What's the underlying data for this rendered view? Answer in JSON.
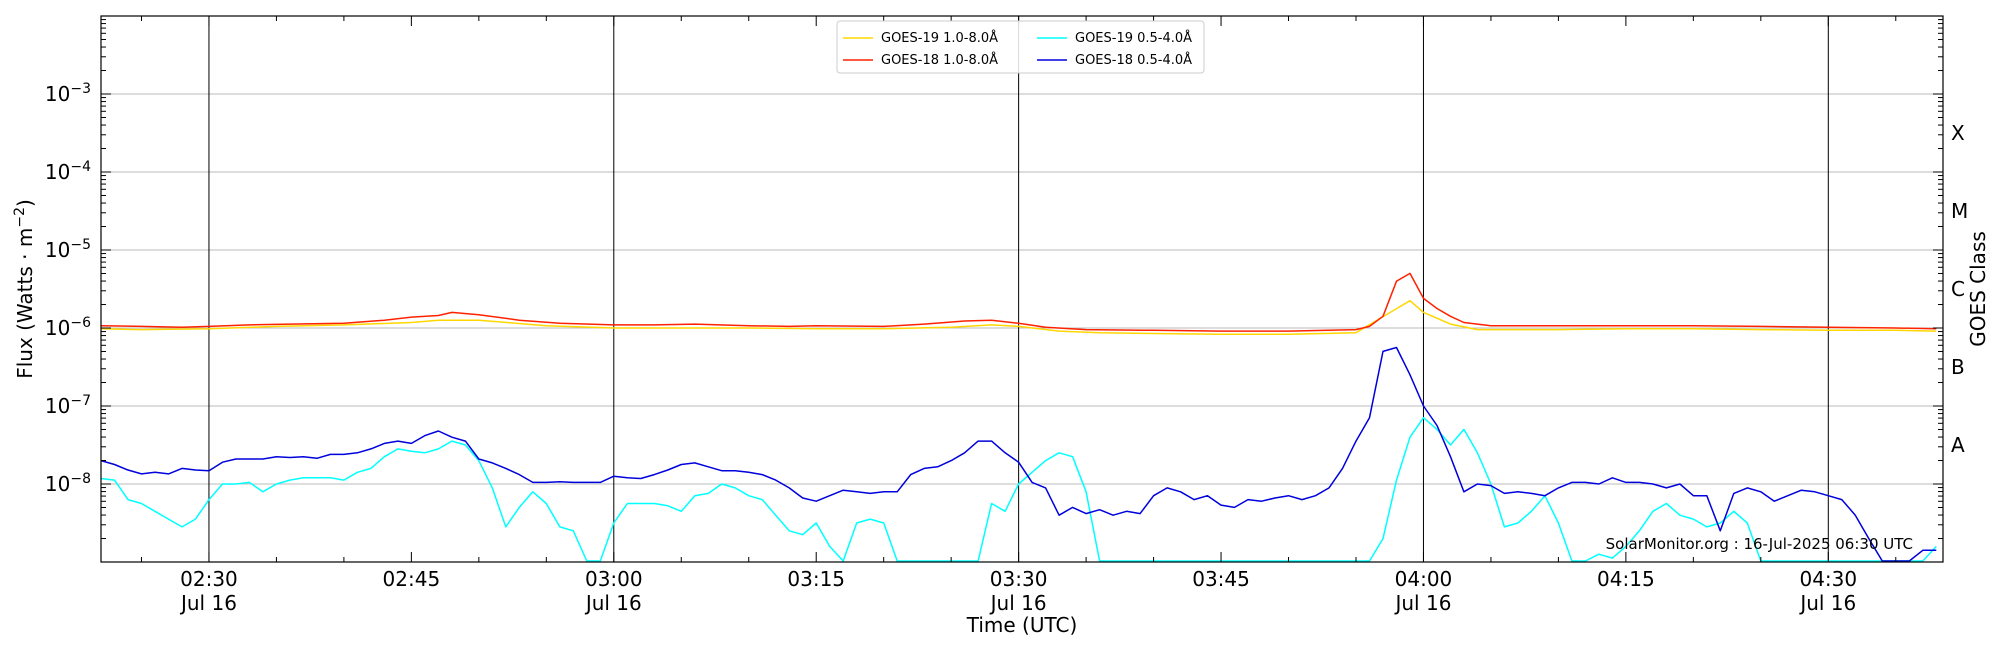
{
  "chart_data": {
    "type": "line",
    "xlabel": "Time (UTC)",
    "ylabel_text": "Flux (Watts · m",
    "ylabel_exp": "−2",
    "ylabel_close": ")",
    "right_label": "GOES Class",
    "credit": "SolarMonitor.org : 16-Jul-2025 06:30 UTC",
    "y_scale": "log",
    "ylim": [
      1e-09,
      0.01
    ],
    "xlim_minutes": [
      22.0,
      158.5
    ],
    "x_time_origin": "02:00",
    "x_ticks": [
      {
        "minute": 30,
        "label": "02:30",
        "date": "Jul 16"
      },
      {
        "minute": 45,
        "label": "02:45",
        "date": ""
      },
      {
        "minute": 60,
        "label": "03:00",
        "date": "Jul 16"
      },
      {
        "minute": 75,
        "label": "03:15",
        "date": ""
      },
      {
        "minute": 90,
        "label": "03:30",
        "date": "Jul 16"
      },
      {
        "minute": 105,
        "label": "03:45",
        "date": ""
      },
      {
        "minute": 120,
        "label": "04:00",
        "date": "Jul 16"
      },
      {
        "minute": 135,
        "label": "04:15",
        "date": ""
      },
      {
        "minute": 150,
        "label": "04:30",
        "date": "Jul 16"
      }
    ],
    "vertical_lines_minutes": [
      30,
      60,
      90,
      120,
      150
    ],
    "y_ticks": [
      {
        "exp": -8,
        "label_base": "10",
        "label_exp": "−8"
      },
      {
        "exp": -7,
        "label_base": "10",
        "label_exp": "−7"
      },
      {
        "exp": -6,
        "label_base": "10",
        "label_exp": "−6"
      },
      {
        "exp": -5,
        "label_base": "10",
        "label_exp": "−5"
      },
      {
        "exp": -4,
        "label_base": "10",
        "label_exp": "−4"
      },
      {
        "exp": -3,
        "label_base": "10",
        "label_exp": "−3"
      }
    ],
    "classes": [
      {
        "label": "A",
        "exp": -7.5
      },
      {
        "label": "B",
        "exp": -6.5
      },
      {
        "label": "C",
        "exp": -5.5
      },
      {
        "label": "M",
        "exp": -4.5
      },
      {
        "label": "X",
        "exp": -3.5
      }
    ],
    "grid": "horizontal",
    "legend_position": "top-center",
    "series": [
      {
        "name": "GOES-19 1.0-8.0Å",
        "color": "#ffd700",
        "x": [
          22,
          25,
          30,
          35,
          40,
          45,
          47,
          50,
          55,
          60,
          65,
          70,
          75,
          80,
          85,
          88,
          90,
          93,
          96,
          100,
          105,
          110,
          115,
          119,
          120,
          122,
          124,
          126,
          130,
          135,
          140,
          145,
          150,
          155,
          158
        ],
        "log10": [
          -6.01,
          -6.02,
          -6.01,
          -5.98,
          -5.96,
          -5.93,
          -5.9,
          -5.9,
          -5.97,
          -6.0,
          -6.0,
          -6.0,
          -6.01,
          -6.01,
          -5.99,
          -5.96,
          -5.98,
          -6.04,
          -6.06,
          -6.07,
          -6.08,
          -6.08,
          -6.06,
          -5.65,
          -5.8,
          -5.95,
          -6.02,
          -6.02,
          -6.02,
          -6.01,
          -6.01,
          -6.02,
          -6.03,
          -6.03,
          -6.04
        ]
      },
      {
        "name": "GOES-18 1.0-8.0Å",
        "color": "#ff2200",
        "x": [
          22,
          25,
          28,
          30,
          33,
          36,
          40,
          43,
          45,
          47,
          48,
          50,
          53,
          56,
          60,
          63,
          66,
          70,
          73,
          75,
          80,
          83,
          86,
          88,
          90,
          92,
          95,
          100,
          105,
          110,
          115,
          116,
          117,
          118,
          119,
          120,
          121,
          122,
          123,
          125,
          130,
          135,
          140,
          145,
          150,
          155,
          158
        ],
        "log10": [
          -5.97,
          -5.98,
          -5.99,
          -5.98,
          -5.96,
          -5.95,
          -5.94,
          -5.9,
          -5.86,
          -5.84,
          -5.8,
          -5.83,
          -5.9,
          -5.94,
          -5.96,
          -5.96,
          -5.95,
          -5.97,
          -5.98,
          -5.97,
          -5.98,
          -5.95,
          -5.91,
          -5.9,
          -5.94,
          -5.99,
          -6.02,
          -6.03,
          -6.04,
          -6.04,
          -6.02,
          -5.98,
          -5.85,
          -5.4,
          -5.3,
          -5.62,
          -5.75,
          -5.85,
          -5.93,
          -5.97,
          -5.97,
          -5.97,
          -5.97,
          -5.98,
          -5.99,
          -6.0,
          -6.01
        ]
      },
      {
        "name": "GOES-19 0.5-4.0Å",
        "color": "#00ffff",
        "x": [
          22,
          23,
          24,
          25,
          26,
          27,
          28,
          29,
          30,
          31,
          32,
          33,
          34,
          35,
          36,
          37,
          38,
          39,
          40,
          41,
          42,
          43,
          44,
          45,
          46,
          47,
          48,
          49,
          50,
          51,
          52,
          53,
          54,
          55,
          56,
          57,
          58,
          59,
          60,
          61,
          62,
          63,
          64,
          65,
          66,
          67,
          68,
          69,
          70,
          71,
          72,
          73,
          74,
          75,
          76,
          77,
          78,
          79,
          80,
          81,
          82,
          83,
          84,
          85,
          86,
          87,
          88,
          89,
          90,
          91,
          92,
          93,
          94,
          95,
          96,
          97,
          98,
          99,
          100,
          101,
          102,
          103,
          104,
          105,
          106,
          107,
          108,
          109,
          110,
          111,
          112,
          113,
          114,
          115,
          116,
          117,
          118,
          119,
          120,
          121,
          122,
          123,
          124,
          125,
          126,
          127,
          128,
          129,
          130,
          131,
          132,
          133,
          134,
          135,
          136,
          137,
          138,
          139,
          140,
          141,
          142,
          143,
          144,
          145,
          146,
          147,
          148,
          149,
          150,
          151,
          152,
          153,
          154,
          155,
          156,
          157,
          158
        ],
        "log10": [
          -7.93,
          -7.95,
          -8.2,
          -8.25,
          -8.35,
          -8.45,
          -8.55,
          -8.45,
          -8.2,
          -8.0,
          -8.0,
          -7.98,
          -8.1,
          -8.0,
          -7.95,
          -7.92,
          -7.92,
          -7.92,
          -7.95,
          -7.85,
          -7.8,
          -7.65,
          -7.55,
          -7.58,
          -7.6,
          -7.55,
          -7.45,
          -7.5,
          -7.7,
          -8.05,
          -8.55,
          -8.3,
          -8.1,
          -8.25,
          -8.55,
          -8.6,
          -9.0,
          -9.0,
          -8.5,
          -8.25,
          -8.25,
          -8.25,
          -8.28,
          -8.35,
          -8.15,
          -8.12,
          -8.0,
          -8.05,
          -8.15,
          -8.2,
          -8.4,
          -8.6,
          -8.65,
          -8.5,
          -8.8,
          -9.0,
          -8.5,
          -8.45,
          -8.5,
          -9.0,
          -9.0,
          -9.0,
          -9.0,
          -9.0,
          -9.0,
          -9.0,
          -8.25,
          -8.35,
          -8.0,
          -7.85,
          -7.7,
          -7.6,
          -7.65,
          -8.1,
          -9.0,
          -9.0,
          -9.0,
          -9.0,
          -9.0,
          -9.0,
          -9.0,
          -9.0,
          -9.0,
          -9.0,
          -9.0,
          -9.0,
          -9.0,
          -9.0,
          -9.0,
          -9.0,
          -9.0,
          -9.0,
          -9.0,
          -9.0,
          -9.0,
          -8.7,
          -7.95,
          -7.4,
          -7.15,
          -7.3,
          -7.5,
          -7.3,
          -7.6,
          -8.0,
          -8.55,
          -8.5,
          -8.35,
          -8.15,
          -8.5,
          -9.0,
          -9.0,
          -8.9,
          -8.95,
          -8.8,
          -8.6,
          -8.35,
          -8.25,
          -8.4,
          -8.45,
          -8.55,
          -8.5,
          -8.35,
          -8.5,
          -9.0,
          -9.0,
          -9.0,
          -9.0,
          -9.0,
          -9.0,
          -9.0,
          -9.0,
          -9.0,
          -9.0,
          -9.0,
          -9.0,
          -9.0,
          -8.8,
          -8.6,
          -8.5,
          -8.45,
          -8.4,
          -8.35,
          -8.4
        ]
      },
      {
        "name": "GOES-18 0.5-4.0Å",
        "color": "#0000dd",
        "x": [
          22,
          23,
          24,
          25,
          26,
          27,
          28,
          29,
          30,
          31,
          32,
          33,
          34,
          35,
          36,
          37,
          38,
          39,
          40,
          41,
          42,
          43,
          44,
          45,
          46,
          47,
          48,
          49,
          50,
          51,
          52,
          53,
          54,
          55,
          56,
          57,
          58,
          59,
          60,
          61,
          62,
          63,
          64,
          65,
          66,
          67,
          68,
          69,
          70,
          71,
          72,
          73,
          74,
          75,
          76,
          77,
          78,
          79,
          80,
          81,
          82,
          83,
          84,
          85,
          86,
          87,
          88,
          89,
          90,
          91,
          92,
          93,
          94,
          95,
          96,
          97,
          98,
          99,
          100,
          101,
          102,
          103,
          104,
          105,
          106,
          107,
          108,
          109,
          110,
          111,
          112,
          113,
          114,
          115,
          116,
          117,
          118,
          119,
          120,
          121,
          122,
          123,
          124,
          125,
          126,
          127,
          128,
          129,
          130,
          131,
          132,
          133,
          134,
          135,
          136,
          137,
          138,
          139,
          140,
          141,
          142,
          143,
          144,
          145,
          146,
          147,
          148,
          149,
          150,
          151,
          152,
          153,
          154,
          155,
          156,
          157,
          158
        ],
        "log10": [
          -7.7,
          -7.75,
          -7.82,
          -7.87,
          -7.85,
          -7.87,
          -7.8,
          -7.82,
          -7.83,
          -7.72,
          -7.68,
          -7.68,
          -7.68,
          -7.65,
          -7.66,
          -7.65,
          -7.67,
          -7.62,
          -7.62,
          -7.6,
          -7.55,
          -7.48,
          -7.45,
          -7.48,
          -7.38,
          -7.32,
          -7.4,
          -7.45,
          -7.68,
          -7.73,
          -7.8,
          -7.88,
          -7.98,
          -7.98,
          -7.97,
          -7.98,
          -7.98,
          -7.98,
          -7.9,
          -7.92,
          -7.93,
          -7.88,
          -7.82,
          -7.75,
          -7.73,
          -7.78,
          -7.83,
          -7.83,
          -7.85,
          -7.88,
          -7.95,
          -8.05,
          -8.18,
          -8.22,
          -8.15,
          -8.08,
          -8.1,
          -8.12,
          -8.1,
          -8.1,
          -7.88,
          -7.8,
          -7.78,
          -7.7,
          -7.6,
          -7.45,
          -7.45,
          -7.6,
          -7.72,
          -7.98,
          -8.05,
          -8.4,
          -8.3,
          -8.38,
          -8.33,
          -8.4,
          -8.35,
          -8.38,
          -8.15,
          -8.05,
          -8.1,
          -8.2,
          -8.15,
          -8.27,
          -8.3,
          -8.2,
          -8.22,
          -8.18,
          -8.15,
          -8.2,
          -8.15,
          -8.05,
          -7.8,
          -7.45,
          -7.15,
          -6.3,
          -6.25,
          -6.6,
          -7.0,
          -7.25,
          -7.65,
          -8.1,
          -8.0,
          -8.02,
          -8.12,
          -8.1,
          -8.12,
          -8.15,
          -8.05,
          -7.98,
          -7.98,
          -8.0,
          -7.92,
          -7.98,
          -7.98,
          -8.0,
          -8.05,
          -8.0,
          -8.15,
          -8.15,
          -8.6,
          -8.12,
          -8.05,
          -8.1,
          -8.22,
          -8.15,
          -8.08,
          -8.1,
          -8.15,
          -8.2,
          -8.4,
          -8.7,
          -9.0,
          -9.0,
          -9.0,
          -8.85,
          -8.85
        ]
      }
    ]
  }
}
